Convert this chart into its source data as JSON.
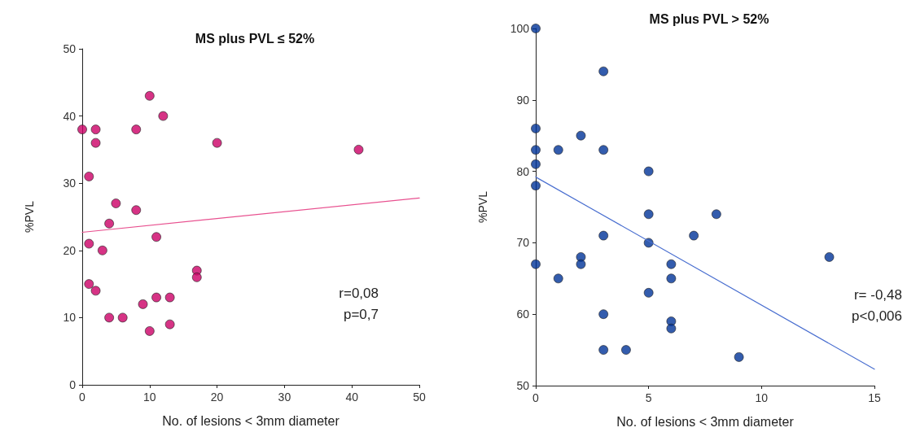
{
  "chart_data": [
    {
      "type": "scatter",
      "title": "MS plus PVL ≤ 52%",
      "xlabel": "No. of lesions < 3mm diameter",
      "ylabel": "%PVL",
      "xlim": [
        0,
        50
      ],
      "xticks": [
        0,
        10,
        20,
        30,
        40,
        50
      ],
      "ylim": [
        0,
        50
      ],
      "yticks": [
        0,
        10,
        20,
        30,
        40,
        50
      ],
      "grid": false,
      "marker": "circle",
      "annotations": [
        "r=0,08",
        "p=0,7"
      ],
      "series": [
        {
          "color": "#cc0066",
          "x": [
            0,
            1,
            1,
            1,
            2,
            2,
            2,
            3,
            4,
            4,
            5,
            6,
            8,
            8,
            9,
            10,
            10,
            11,
            11,
            12,
            13,
            13,
            17,
            17,
            20,
            41
          ],
          "values": [
            38,
            31,
            21,
            15,
            38,
            36,
            14,
            20,
            24,
            10,
            27,
            10,
            38,
            26,
            12,
            43,
            8,
            22,
            13,
            40,
            13,
            9,
            17,
            16,
            36,
            35
          ]
        },
        {
          "type": "line",
          "color": "#e8508f",
          "marker": "none",
          "line_style": "solid",
          "x": [
            0,
            50
          ],
          "values": [
            22.7,
            27.8
          ]
        }
      ]
    },
    {
      "type": "scatter",
      "title": "MS plus PVL > 52%",
      "xlabel": "No. of lesions < 3mm diameter",
      "ylabel": "%PVL",
      "xlim": [
        0,
        15
      ],
      "xticks": [
        0,
        5,
        10,
        15
      ],
      "ylim": [
        50,
        100
      ],
      "yticks": [
        50,
        60,
        70,
        80,
        90,
        100
      ],
      "grid": false,
      "marker": "circle",
      "annotations": [
        "r= -0,48",
        "p<0,006"
      ],
      "series": [
        {
          "color": "#003399",
          "x": [
            0,
            0,
            0,
            0,
            0,
            0,
            1,
            1,
            2,
            2,
            2,
            3,
            3,
            3,
            3,
            3,
            4,
            5,
            5,
            5,
            5,
            6,
            6,
            6,
            6,
            7,
            8,
            9,
            13
          ],
          "values": [
            100,
            86,
            83,
            81,
            78,
            67,
            83,
            65,
            85,
            68,
            67,
            94,
            83,
            71,
            60,
            55,
            55,
            80,
            74,
            70,
            63,
            67,
            65,
            59,
            58,
            71,
            74,
            54,
            68
          ]
        },
        {
          "type": "line",
          "color": "#4a6fd0",
          "marker": "none",
          "line_style": "solid",
          "x": [
            0,
            15
          ],
          "values": [
            79.2,
            52.3
          ]
        }
      ]
    }
  ]
}
